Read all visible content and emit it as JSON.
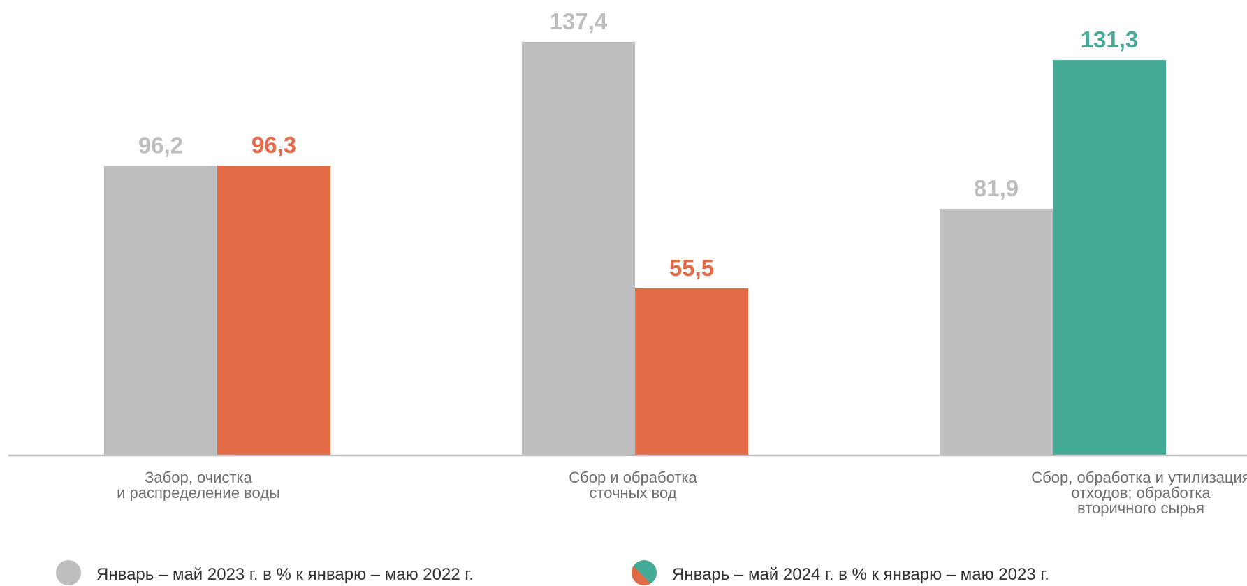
{
  "chart_data": {
    "type": "bar",
    "categories": [
      [
        "Забор, очистка",
        "и распределение воды"
      ],
      [
        "Сбор и обработка",
        "сточных вод"
      ],
      [
        "Сбор, обработка и утилизация",
        "отходов; обработка",
        "вторичного сырья"
      ]
    ],
    "series": [
      {
        "name": "Январь – май 2023 г. в % к январю – маю 2022 г.",
        "values": [
          96.2,
          137.4,
          81.9
        ],
        "labels": [
          "96,2",
          "137,4",
          "81,9"
        ],
        "color": "#bebebe",
        "label_color": "#bebebe"
      },
      {
        "name": "Январь – май 2024 г. в % к январю – маю 2023 г.",
        "values": [
          96.3,
          55.5,
          131.3
        ],
        "labels": [
          "96,3",
          "55,5",
          "131,3"
        ],
        "colors": [
          "#e36a46",
          "#e36a46",
          "#44a995"
        ]
      }
    ],
    "ylim": [
      0,
      140
    ],
    "grid": false,
    "legend": "bottom"
  },
  "colors": {
    "axis": "#bfbfbf",
    "legend_marker_left": "#bebebe",
    "legend_marker_right_a": "#e36a46",
    "legend_marker_right_b": "#44a995"
  }
}
